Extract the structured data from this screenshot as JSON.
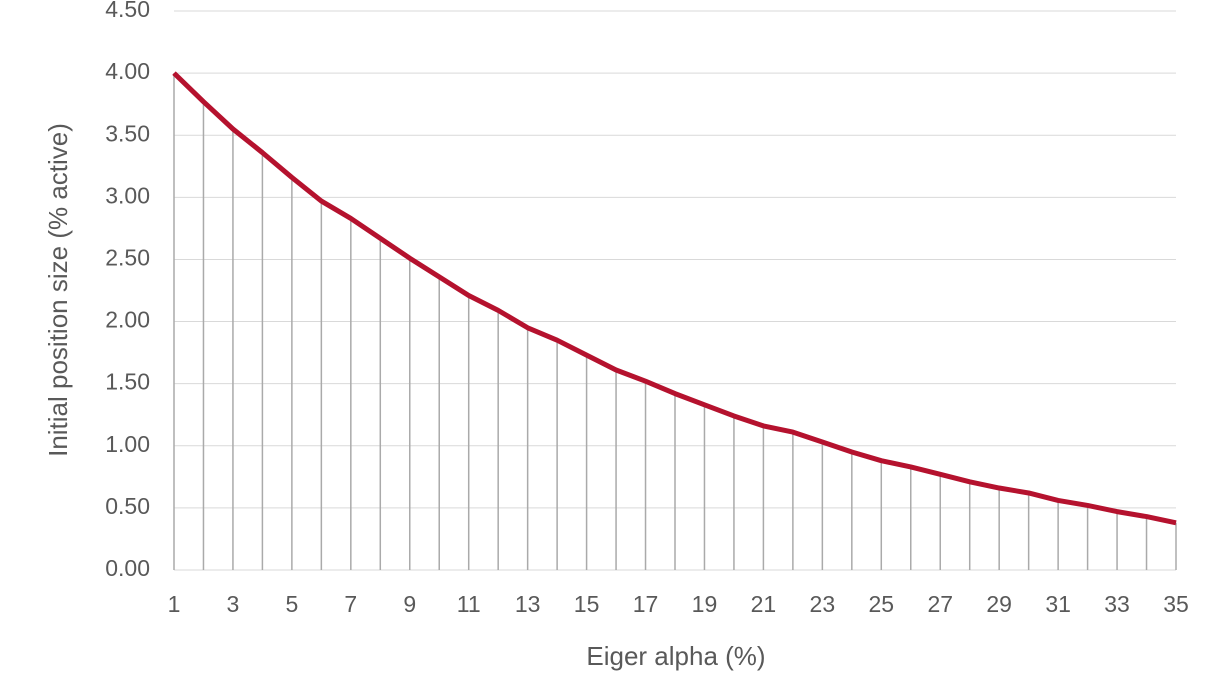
{
  "chart_data": {
    "type": "line",
    "x_label": "Eiger alpha (%)",
    "y_label": "Initial position size (% active)",
    "x": [
      1,
      2,
      3,
      4,
      5,
      6,
      7,
      8,
      9,
      10,
      11,
      12,
      13,
      14,
      15,
      16,
      17,
      18,
      19,
      20,
      21,
      22,
      23,
      24,
      25,
      26,
      27,
      28,
      29,
      30,
      31,
      32,
      33,
      34,
      35
    ],
    "values": [
      4.0,
      3.77,
      3.55,
      3.36,
      3.16,
      2.97,
      2.83,
      2.67,
      2.51,
      2.36,
      2.21,
      2.09,
      1.95,
      1.85,
      1.73,
      1.61,
      1.52,
      1.42,
      1.33,
      1.24,
      1.16,
      1.11,
      1.03,
      0.95,
      0.88,
      0.83,
      0.77,
      0.71,
      0.66,
      0.62,
      0.56,
      0.52,
      0.47,
      0.43,
      0.38
    ],
    "color": "#b5122e",
    "drop_line_color": "#aaaaaa",
    "xlim": [
      1,
      35
    ],
    "xticks": [
      1,
      3,
      5,
      7,
      9,
      11,
      13,
      15,
      17,
      19,
      21,
      23,
      25,
      27,
      29,
      31,
      33,
      35
    ],
    "ylim": [
      0,
      4.5
    ],
    "yticks": [
      {
        "value": 0,
        "label": "0.00"
      },
      {
        "value": 0.5,
        "label": "0.50"
      },
      {
        "value": 1,
        "label": "1.00"
      },
      {
        "value": 1.5,
        "label": "1.50"
      },
      {
        "value": 2,
        "label": "2.00"
      },
      {
        "value": 2.5,
        "label": "2.50"
      },
      {
        "value": 3,
        "label": "3.00"
      },
      {
        "value": 3.5,
        "label": "3.50"
      },
      {
        "value": 4,
        "label": "4.00"
      },
      {
        "value": 4.5,
        "label": "4.50"
      }
    ],
    "grid": true
  }
}
